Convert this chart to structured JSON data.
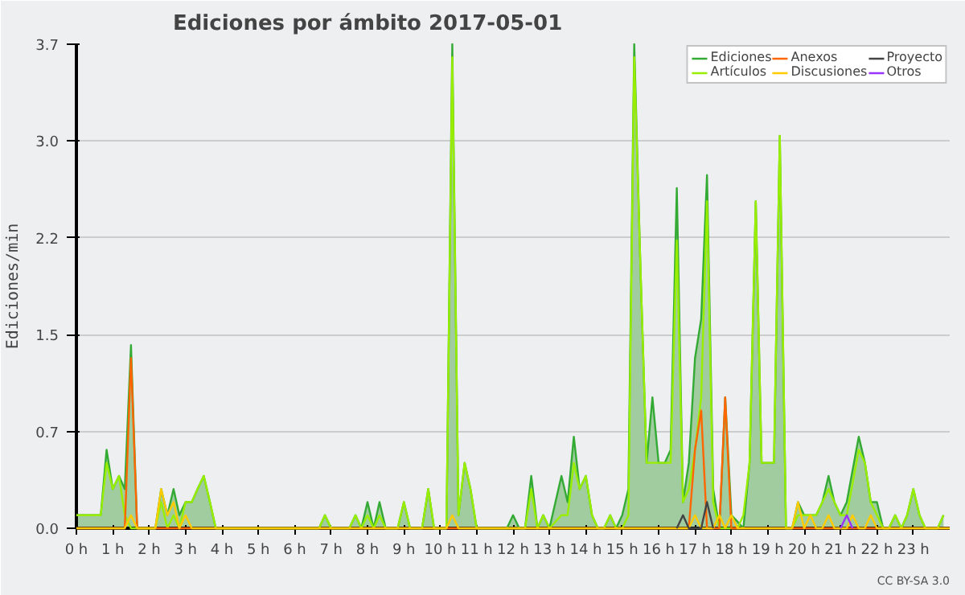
{
  "chart_data": {
    "type": "line",
    "title": "Ediciones por ámbito  2017-05-01",
    "ylabel": "Ediciones/min",
    "xlim": [
      0,
      24
    ],
    "ylim": [
      0,
      3.7
    ],
    "xticks": [
      {
        "value": 0,
        "label": "0 h"
      },
      {
        "value": 1,
        "label": "1 h"
      },
      {
        "value": 2,
        "label": "2 h"
      },
      {
        "value": 3,
        "label": "3 h"
      },
      {
        "value": 4,
        "label": "4 h"
      },
      {
        "value": 5,
        "label": "5 h"
      },
      {
        "value": 6,
        "label": "6 h"
      },
      {
        "value": 7,
        "label": "7 h"
      },
      {
        "value": 8,
        "label": "8 h"
      },
      {
        "value": 9,
        "label": "9 h"
      },
      {
        "value": 10,
        "label": "10 h"
      },
      {
        "value": 11,
        "label": "11 h"
      },
      {
        "value": 12,
        "label": "12 h"
      },
      {
        "value": 13,
        "label": "13 h"
      },
      {
        "value": 14,
        "label": "14 h"
      },
      {
        "value": 15,
        "label": "15 h"
      },
      {
        "value": 16,
        "label": "16 h"
      },
      {
        "value": 17,
        "label": "17 h"
      },
      {
        "value": 18,
        "label": "18 h"
      },
      {
        "value": 19,
        "label": "19 h"
      },
      {
        "value": 20,
        "label": "20 h"
      },
      {
        "value": 21,
        "label": "21 h"
      },
      {
        "value": 22,
        "label": "22 h"
      },
      {
        "value": 23,
        "label": "23 h"
      }
    ],
    "yticks": [
      {
        "value": 0,
        "label": "0.0"
      },
      {
        "value": 0.74,
        "label": "0.7"
      },
      {
        "value": 1.48,
        "label": "1.5"
      },
      {
        "value": 2.22,
        "label": "2.2"
      },
      {
        "value": 2.96,
        "label": "3.0"
      },
      {
        "value": 3.7,
        "label": "3.7"
      }
    ],
    "grid": "y",
    "legend": "top right",
    "annotations": [
      "CC BY-SA 3.0"
    ],
    "series": [
      {
        "name": "Ediciones",
        "type": "area",
        "color": "#33aa33",
        "x": [
          0,
          0.67,
          0.83,
          1.0,
          1.17,
          1.33,
          1.5,
          1.67,
          2.17,
          2.33,
          2.5,
          2.67,
          2.83,
          3.0,
          3.17,
          3.33,
          3.5,
          3.67,
          3.83,
          6.67,
          6.83,
          7.0,
          7.5,
          7.67,
          7.83,
          8.0,
          8.17,
          8.33,
          8.5,
          8.83,
          9.0,
          9.17,
          9.5,
          9.67,
          9.83,
          10.17,
          10.33,
          10.5,
          10.67,
          10.83,
          11.0,
          11.83,
          12.0,
          12.17,
          12.33,
          12.5,
          12.67,
          12.83,
          13.0,
          13.33,
          13.5,
          13.67,
          13.83,
          14.0,
          14.17,
          14.33,
          14.5,
          14.67,
          14.83,
          15.0,
          15.17,
          15.33,
          15.5,
          15.67,
          15.83,
          16.0,
          16.17,
          16.33,
          16.5,
          16.67,
          16.83,
          17.0,
          17.17,
          17.33,
          17.5,
          17.67,
          17.83,
          18.0,
          18.17,
          18.33,
          18.5,
          18.67,
          18.83,
          19.0,
          19.17,
          19.33,
          19.5,
          19.67,
          19.83,
          20.0,
          20.33,
          20.5,
          20.67,
          20.83,
          21.0,
          21.17,
          21.5,
          21.67,
          21.83,
          22.0,
          22.17,
          22.33,
          22.5,
          22.67,
          22.83,
          23.0,
          23.17,
          23.33,
          23.67,
          23.83
        ],
        "values": [
          0.1,
          0.1,
          0.6,
          0.3,
          0.4,
          0.3,
          1.4,
          0,
          0,
          0.3,
          0.1,
          0.3,
          0.1,
          0.2,
          0.2,
          0.3,
          0.4,
          0.2,
          0,
          0,
          0.1,
          0,
          0,
          0.1,
          0,
          0.2,
          0,
          0.2,
          0,
          0,
          0.2,
          0,
          0,
          0.3,
          0,
          0,
          3.7,
          0.1,
          0.5,
          0.3,
          0,
          0,
          0.1,
          0,
          0,
          0.4,
          0,
          0.1,
          0,
          0.4,
          0.2,
          0.7,
          0.3,
          0.4,
          0.1,
          0,
          0,
          0.1,
          0,
          0.1,
          0.3,
          3.7,
          2.0,
          0.5,
          1.0,
          0.5,
          0.5,
          0.6,
          2.6,
          0.2,
          0.5,
          1.3,
          1.6,
          2.7,
          0.3,
          0,
          1.0,
          0.1,
          0.05,
          0,
          0.5,
          2.5,
          0.5,
          0.5,
          0.5,
          3.0,
          0,
          0,
          0.2,
          0.1,
          0.1,
          0.2,
          0.4,
          0.2,
          0.1,
          0.2,
          0.7,
          0.5,
          0.2,
          0.2,
          0,
          0,
          0.1,
          0,
          0.1,
          0.3,
          0.1,
          0,
          0,
          0.1
        ]
      },
      {
        "name": "Artículos",
        "color": "#99ee00",
        "x": [
          0,
          0.67,
          0.83,
          1.0,
          1.17,
          1.33,
          1.5,
          1.67,
          2.17,
          2.33,
          2.5,
          2.67,
          2.83,
          3.0,
          3.17,
          3.33,
          3.5,
          3.67,
          3.83,
          6.67,
          6.83,
          7.0,
          7.5,
          7.67,
          7.83,
          8.0,
          8.17,
          8.33,
          8.5,
          8.83,
          9.0,
          9.17,
          9.5,
          9.67,
          9.83,
          10.17,
          10.33,
          10.5,
          10.67,
          10.83,
          11.0,
          11.83,
          12.0,
          12.17,
          12.33,
          12.5,
          12.67,
          12.83,
          13.0,
          13.33,
          13.5,
          13.67,
          13.83,
          14.0,
          14.17,
          14.33,
          14.5,
          14.67,
          14.83,
          15.0,
          15.17,
          15.33,
          15.5,
          15.67,
          15.83,
          16.0,
          16.17,
          16.33,
          16.5,
          16.67,
          16.83,
          17.0,
          17.17,
          17.33,
          17.5,
          17.67,
          17.83,
          18.0,
          18.17,
          18.33,
          18.5,
          18.67,
          18.83,
          19.0,
          19.17,
          19.33,
          19.5,
          19.67,
          19.83,
          20.0,
          20.33,
          20.5,
          20.67,
          20.83,
          21.0,
          21.17,
          21.5,
          21.67,
          21.83,
          22.0,
          22.17,
          22.33,
          22.5,
          22.67,
          22.83,
          23.0,
          23.17,
          23.33,
          23.67,
          23.83
        ],
        "values": [
          0.1,
          0.1,
          0.5,
          0.3,
          0.4,
          0.1,
          0,
          0,
          0,
          0.2,
          0,
          0.1,
          0,
          0.2,
          0.2,
          0.3,
          0.4,
          0.2,
          0,
          0,
          0.1,
          0,
          0,
          0.1,
          0,
          0.1,
          0,
          0.1,
          0,
          0,
          0.2,
          0,
          0,
          0.3,
          0,
          0,
          3.6,
          0.1,
          0.5,
          0.3,
          0,
          0,
          0,
          0,
          0,
          0.3,
          0,
          0.1,
          0,
          0.1,
          0.1,
          0.5,
          0.3,
          0.4,
          0.1,
          0,
          0,
          0.1,
          0,
          0,
          0.1,
          3.6,
          2.0,
          0.5,
          0.5,
          0.5,
          0.5,
          0.5,
          2.2,
          0.2,
          0.3,
          0.6,
          1.0,
          2.5,
          0.2,
          0,
          0,
          0,
          0,
          0.1,
          0.5,
          2.5,
          0.5,
          0.5,
          0.5,
          3.0,
          0,
          0,
          0.1,
          0.1,
          0.1,
          0.2,
          0.3,
          0.2,
          0.1,
          0.1,
          0.6,
          0.5,
          0.2,
          0.1,
          0,
          0,
          0.1,
          0,
          0.1,
          0.3,
          0.1,
          0,
          0,
          0.1
        ]
      },
      {
        "name": "Anexos",
        "color": "#ff6600",
        "x": [
          0,
          1.33,
          1.5,
          1.67,
          16.83,
          17.0,
          17.17,
          17.33,
          17.67,
          17.83,
          18.0,
          24
        ],
        "values": [
          0,
          0,
          1.3,
          0,
          0,
          0.6,
          0.9,
          0,
          0,
          1.0,
          0,
          0
        ]
      },
      {
        "name": "Discusiones",
        "color": "#ffcc00",
        "x": [
          0,
          1.33,
          1.5,
          1.67,
          2.17,
          2.33,
          2.5,
          2.67,
          2.83,
          3.0,
          3.17,
          10.17,
          10.33,
          10.5,
          16.83,
          17.0,
          17.17,
          17.5,
          17.67,
          17.83,
          18.0,
          18.17,
          19.67,
          19.83,
          20.0,
          20.17,
          20.33,
          20.5,
          20.67,
          20.83,
          21.17,
          21.33,
          21.5,
          21.67,
          21.83,
          22.0,
          24
        ],
        "values": [
          0,
          0,
          0.1,
          0,
          0,
          0.3,
          0.1,
          0.2,
          0,
          0.1,
          0,
          0,
          0.1,
          0,
          0,
          0.1,
          0,
          0,
          0.1,
          0,
          0.1,
          0,
          0,
          0.2,
          0,
          0.1,
          0,
          0,
          0.1,
          0,
          0,
          0.1,
          0,
          0,
          0.1,
          0,
          0
        ]
      },
      {
        "name": "Proyecto",
        "color": "#444444",
        "x": [
          16.5,
          16.67,
          16.83,
          17.17,
          17.33,
          17.5
        ],
        "values": [
          0,
          0.1,
          0,
          0,
          0.2,
          0
        ]
      },
      {
        "name": "Otros",
        "color": "#9933ff",
        "x": [
          21.0,
          21.17,
          21.33
        ],
        "values": [
          0,
          0.1,
          0
        ]
      }
    ]
  }
}
